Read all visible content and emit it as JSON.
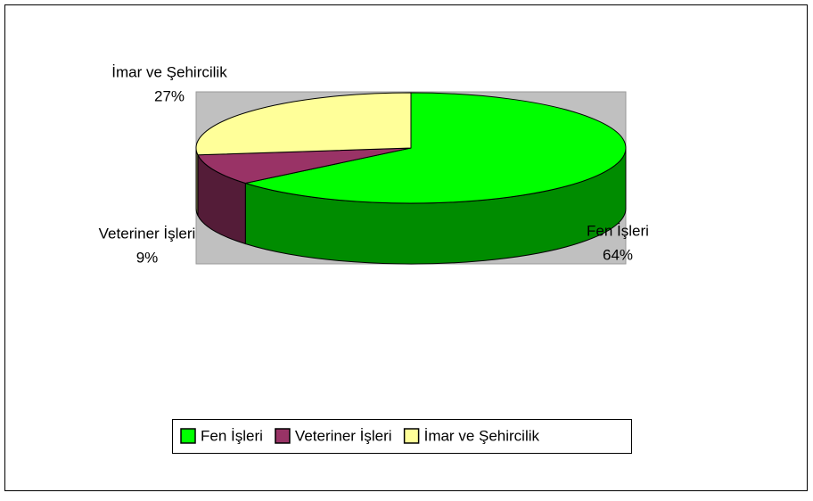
{
  "chart_data": {
    "type": "pie3d",
    "categories": [
      "Fen İşleri",
      "Veteriner İşleri",
      "İmar ve Şehircilik"
    ],
    "values": [
      64,
      9,
      27
    ],
    "value_labels": [
      "64%",
      "9%",
      "27%"
    ],
    "colors": [
      "#00ff00",
      "#993366",
      "#ffff99"
    ],
    "legend": "bottom"
  }
}
